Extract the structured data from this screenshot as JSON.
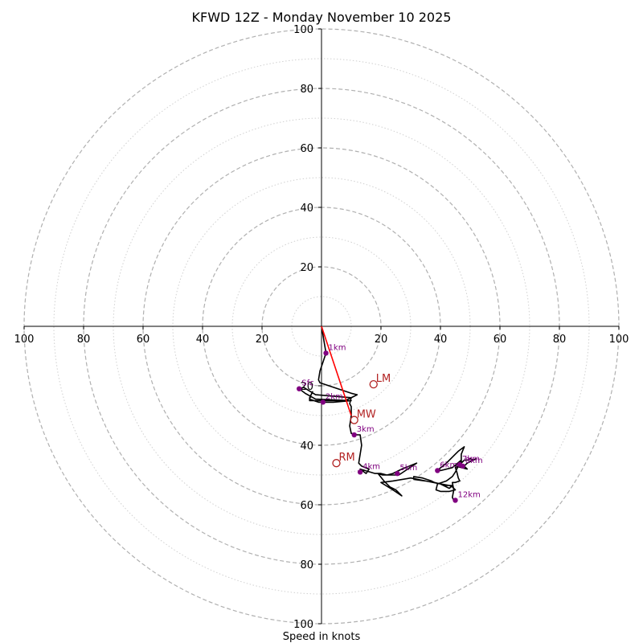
{
  "chart_data": {
    "type": "hodograph",
    "title": "KFWD 12Z - Monday November 10 2025",
    "xlabel": "Speed in knots",
    "max_speed": 100,
    "ring_step": 10,
    "labeled_ring_step": 20,
    "axis_ticks": [
      "20",
      "40",
      "60",
      "80",
      "100"
    ],
    "colors": {
      "trace": "#000000",
      "shear_vector": "#ff0000",
      "height_marker": "#800080",
      "motion_marker": "#b22222",
      "ring": "#b0b0b0"
    },
    "trace_uv": [
      [
        0,
        0
      ],
      [
        1.5,
        -9
      ],
      [
        0.5,
        -12
      ],
      [
        -0.5,
        -15
      ],
      [
        -1,
        -18
      ],
      [
        -0.5,
        -19
      ],
      [
        10,
        -22.5
      ],
      [
        12,
        -23
      ],
      [
        8,
        -25
      ],
      [
        -2,
        -25
      ],
      [
        -4,
        -25
      ],
      [
        -4,
        -24
      ],
      [
        -3,
        -22
      ],
      [
        -3.5,
        -23
      ],
      [
        -4,
        -24.5
      ],
      [
        -1,
        -25.5
      ],
      [
        4,
        -25.5
      ],
      [
        10,
        -25
      ],
      [
        -2,
        -24.5
      ],
      [
        -5.5,
        -22.5
      ],
      [
        -7.5,
        -21
      ],
      [
        -6,
        -20.5
      ],
      [
        -2,
        -23
      ],
      [
        10,
        -24
      ],
      [
        9.5,
        -26
      ],
      [
        10,
        -27
      ],
      [
        10,
        -30
      ],
      [
        9.5,
        -33.5
      ],
      [
        10,
        -36
      ],
      [
        12,
        -36.5
      ],
      [
        13,
        -36.5
      ],
      [
        13.5,
        -40
      ],
      [
        13,
        -43
      ],
      [
        12.5,
        -46
      ],
      [
        13.5,
        -47
      ],
      [
        16,
        -48
      ],
      [
        15,
        -49.5
      ],
      [
        13,
        -48
      ],
      [
        18,
        -49.5
      ],
      [
        20,
        -49.5
      ],
      [
        22,
        -50
      ],
      [
        24,
        -49.5
      ],
      [
        27,
        -48
      ],
      [
        32,
        -46
      ],
      [
        26,
        -50
      ],
      [
        22.5,
        -50
      ],
      [
        20.5,
        -50
      ],
      [
        19,
        -49.5
      ],
      [
        21,
        -52
      ],
      [
        23,
        -54
      ],
      [
        25,
        -55
      ],
      [
        27,
        -57
      ],
      [
        24,
        -55
      ],
      [
        20,
        -52.5
      ],
      [
        24,
        -52
      ],
      [
        30,
        -51
      ],
      [
        35,
        -52
      ],
      [
        40,
        -53
      ],
      [
        41,
        -53.5
      ],
      [
        44,
        -53.5
      ],
      [
        43,
        -54.5
      ],
      [
        40,
        -53
      ],
      [
        35,
        -52
      ],
      [
        31,
        -51.5
      ],
      [
        31,
        -50.5
      ],
      [
        34,
        -51
      ],
      [
        37,
        -52
      ],
      [
        38,
        -52.5
      ],
      [
        40,
        -53
      ],
      [
        43,
        -53.5
      ],
      [
        44,
        -54
      ],
      [
        45,
        -55
      ],
      [
        43,
        -55.5
      ],
      [
        40,
        -55.5
      ],
      [
        38.5,
        -55
      ],
      [
        39,
        -53
      ],
      [
        42,
        -52
      ],
      [
        44,
        -50.5
      ],
      [
        45,
        -49
      ],
      [
        46,
        -47
      ],
      [
        47,
        -46
      ],
      [
        48,
        -45
      ],
      [
        49,
        -45
      ],
      [
        50,
        -44.5
      ],
      [
        51,
        -45
      ],
      [
        52,
        -44.5
      ],
      [
        49,
        -46
      ],
      [
        48,
        -47
      ],
      [
        49,
        -48
      ],
      [
        45,
        -47
      ],
      [
        47,
        -45
      ],
      [
        44,
        -47.5
      ],
      [
        40,
        -48.5
      ],
      [
        39.5,
        -48
      ],
      [
        42,
        -46
      ],
      [
        45,
        -43
      ],
      [
        46,
        -42
      ],
      [
        48,
        -40.5
      ],
      [
        47,
        -43
      ],
      [
        47,
        -46.5
      ],
      [
        45,
        -47.5
      ],
      [
        45.5,
        -49
      ],
      [
        46,
        -51
      ],
      [
        46.5,
        -52
      ],
      [
        45,
        -52.5
      ],
      [
        44,
        -52.5
      ],
      [
        44.5,
        -55
      ],
      [
        44,
        -57.5
      ],
      [
        44.5,
        -58.5
      ]
    ],
    "height_markers": [
      {
        "label": "1km",
        "u": 1.5,
        "v": -9
      },
      {
        "label": "2km",
        "u": 0.5,
        "v": -25.5
      },
      {
        "label": "3km",
        "u": 11,
        "v": -36.5
      },
      {
        "label": "4km",
        "u": 13,
        "v": -49
      },
      {
        "label": "5km",
        "u": 25.5,
        "v": -49.5
      },
      {
        "label": "6km",
        "u": 39,
        "v": -48.5
      },
      {
        "label": "7km",
        "u": 46.5,
        "v": -46.5
      },
      {
        "label": "8km",
        "u": 47.5,
        "v": -47
      },
      {
        "label": "12km",
        "u": 45,
        "v": -58.5
      },
      {
        "label": "Sfc",
        "u": -7.5,
        "v": -21
      }
    ],
    "storm_motions": [
      {
        "label": "LM",
        "u": 17.5,
        "v": -19.5
      },
      {
        "label": "MW",
        "u": 11,
        "v": -31.5
      },
      {
        "label": "RM",
        "u": 5,
        "v": -46
      }
    ],
    "shear_vector": {
      "from": [
        0,
        0
      ],
      "to": [
        10,
        -30
      ]
    }
  }
}
